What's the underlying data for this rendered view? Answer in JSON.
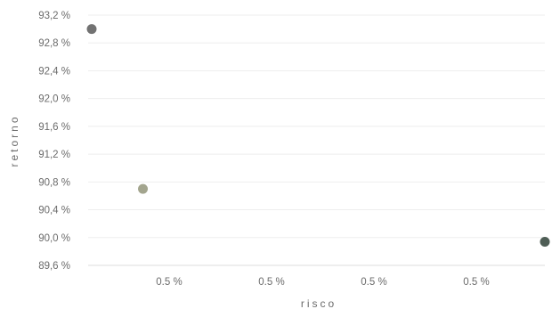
{
  "chart_data": {
    "type": "scatter",
    "xlabel": "risco",
    "ylabel": "retorno",
    "x_ticks": [
      "0.5 %",
      "0.5 %",
      "0.5 %",
      "0.5 %"
    ],
    "y_ticks": [
      "93,2 %",
      "92,8 %",
      "92,4 %",
      "92,0 %",
      "91,6 %",
      "91,2 %",
      "90,8 %",
      "90,4 %",
      "90,0 %",
      "89,6 %"
    ],
    "xlim": [
      0,
      1
    ],
    "ylim": [
      89.6,
      93.2
    ],
    "grid": true,
    "points": [
      {
        "x": 0.0,
        "y": 93.0,
        "color": "#727272"
      },
      {
        "x": 0.113,
        "y": 90.7,
        "color": "#a3a58e"
      },
      {
        "x": 1.0,
        "y": 89.94,
        "color": "#4f5e56"
      }
    ]
  }
}
